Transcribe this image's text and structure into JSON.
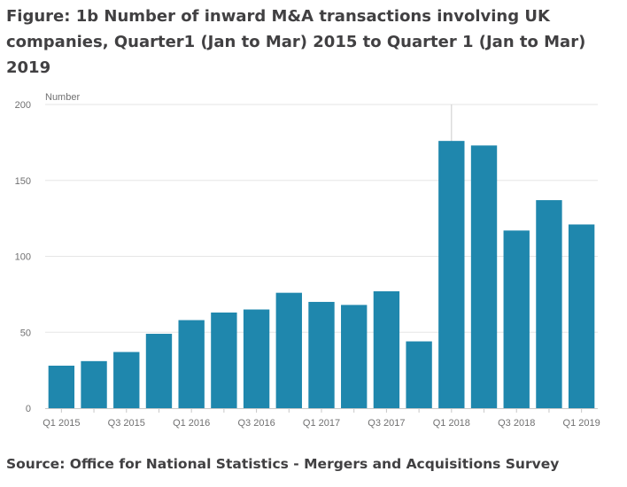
{
  "figure": {
    "title": "Figure: 1b Number of inward M&A transactions involving UK companies, Quarter1 (Jan to Mar) 2015 to Quarter 1 (Jan to Mar) 2019",
    "source": "Source: Office for National Statistics - Mergers and Acquisitions Survey"
  },
  "colors": {
    "bar": "#1f87ad",
    "grid": "#e6e6e6",
    "axis": "#c8c8c8",
    "crosshair": "#cccccc"
  },
  "chart_data": {
    "type": "bar",
    "title": "Figure: 1b Number of inward M&A transactions involving UK companies, Quarter1 (Jan to Mar) 2015 to Quarter 1 (Jan to Mar) 2019",
    "ylabel": "Number",
    "xlabel": "",
    "ylim": [
      0,
      200
    ],
    "yticks": [
      0,
      50,
      100,
      150,
      200
    ],
    "grid": true,
    "legend": "none",
    "categories": [
      "Q1 2015",
      "Q2 2015",
      "Q3 2015",
      "Q4 2015",
      "Q1 2016",
      "Q2 2016",
      "Q3 2016",
      "Q4 2016",
      "Q1 2017",
      "Q2 2017",
      "Q3 2017",
      "Q4 2017",
      "Q1 2018",
      "Q2 2018",
      "Q3 2018",
      "Q4 2018",
      "Q1 2019"
    ],
    "xtick_labels": [
      "Q1 2015",
      "",
      "Q3 2015",
      "",
      "Q1 2016",
      "",
      "Q3 2016",
      "",
      "Q1 2017",
      "",
      "Q3 2017",
      "",
      "Q1 2018",
      "",
      "Q3 2018",
      "",
      "Q1 2019"
    ],
    "values": [
      28,
      31,
      37,
      49,
      58,
      63,
      65,
      76,
      70,
      68,
      77,
      44,
      176,
      173,
      117,
      137,
      121
    ],
    "highlight_category": "Q1 2018"
  }
}
